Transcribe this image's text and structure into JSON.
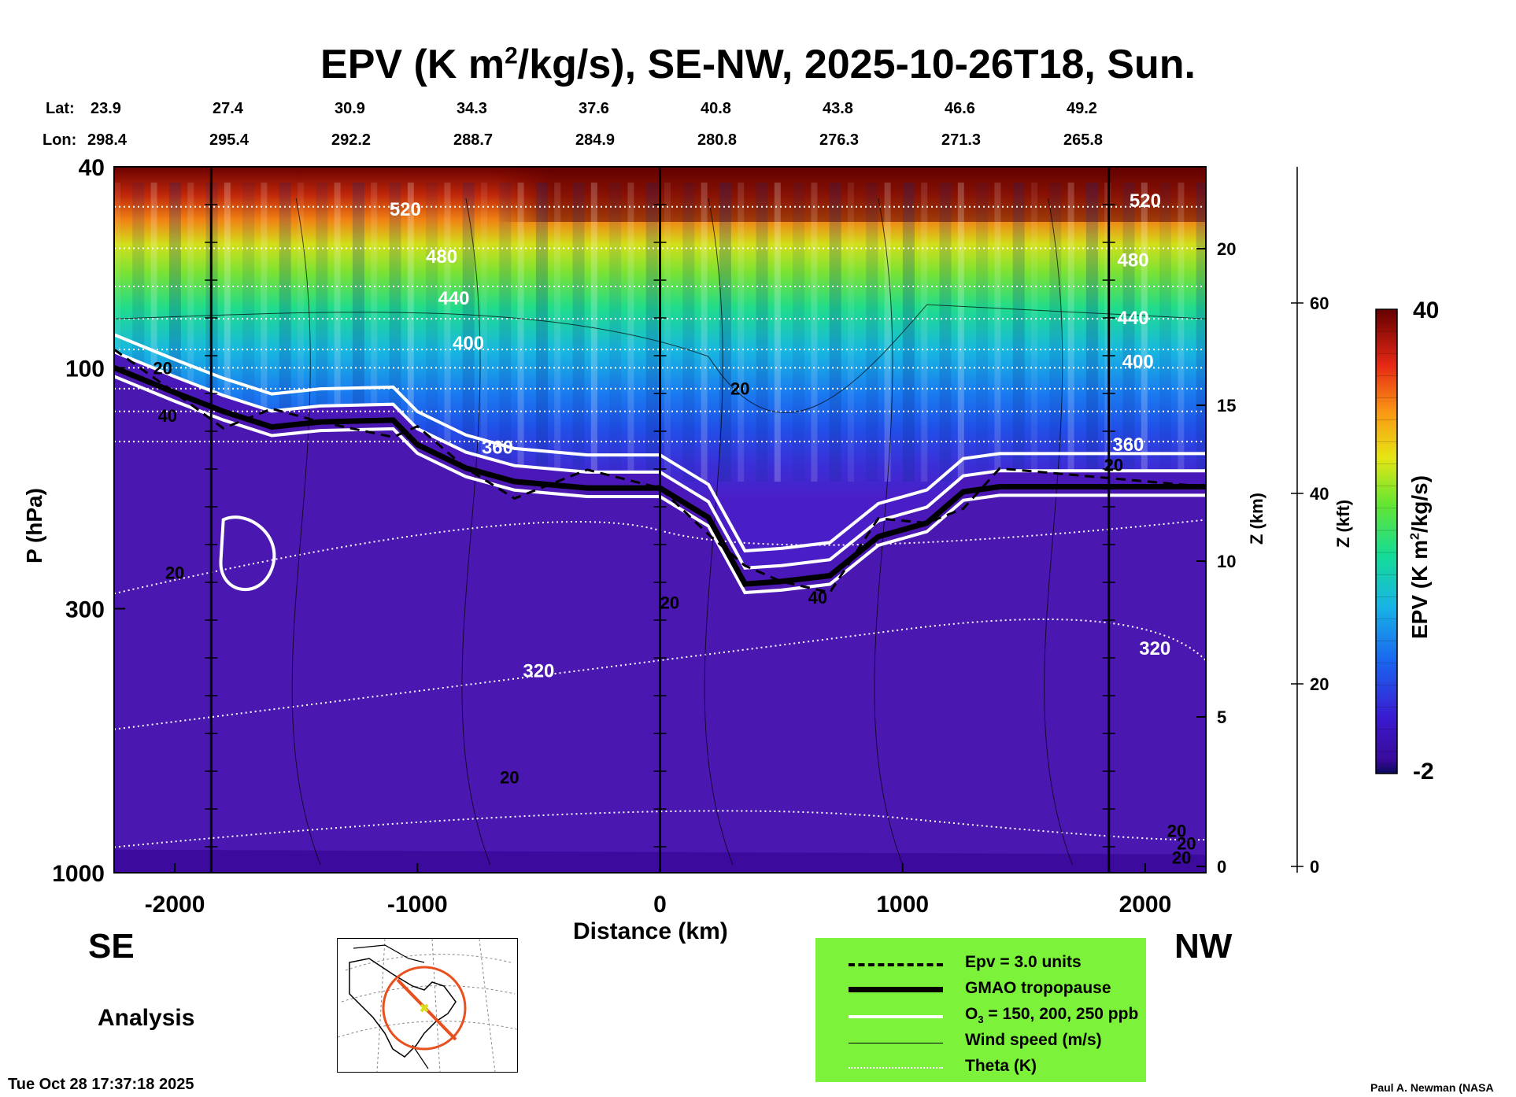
{
  "chart_data": {
    "type": "heatmap",
    "title": "EPV (K m",
    "title_sup": "2",
    "title_rest": "/kg/s), SE-NW, 2025-10-26T18, Sun.",
    "xlabel": "Distance (km)",
    "ylabel": "P (hPa)",
    "ylabel_right1": "Z (km)",
    "ylabel_right2": "Z (kft)",
    "xlim": [
      -2250,
      2250
    ],
    "ylim_hpa": [
      1000,
      40
    ],
    "x_ticks": [
      "-2000",
      "-1000",
      "0",
      "1000",
      "2000"
    ],
    "x_tick_values": [
      -2000,
      -1000,
      0,
      1000,
      2000
    ],
    "y_ticks": [
      "40",
      "100",
      "300",
      "1000"
    ],
    "y_tick_values": [
      40,
      100,
      300,
      1000
    ],
    "z_km_ticks": [
      "20",
      "15",
      "10",
      "5",
      "0"
    ],
    "z_km_values": [
      20,
      15,
      10,
      5,
      0
    ],
    "z_kft_ticks": [
      "60",
      "40",
      "20",
      "0"
    ],
    "z_kft_values": [
      60,
      40,
      20,
      0
    ],
    "lat_label": "Lat:",
    "lon_label": "Lon:",
    "lat": [
      "23.9",
      "27.4",
      "30.9",
      "34.3",
      "37.6",
      "40.8",
      "43.8",
      "46.6",
      "49.2"
    ],
    "lon": [
      "298.4",
      "295.4",
      "292.2",
      "288.7",
      "284.9",
      "280.8",
      "276.3",
      "271.3",
      "265.8"
    ],
    "vertical_markers_km": [
      -1850,
      0,
      1850
    ],
    "colorbar": {
      "label": "EPV (K m",
      "label_sup": "2",
      "label_rest": "/kg/s)",
      "min": "-2",
      "max": "40",
      "range": [
        -2,
        40
      ]
    },
    "theta_labels": [
      "520",
      "480",
      "440",
      "400",
      "360",
      "320",
      "520",
      "480",
      "440",
      "400",
      "360",
      "320"
    ],
    "wind_labels": [
      "20",
      "40",
      "20",
      "20",
      "20",
      "20",
      "40",
      "20",
      "20",
      "20",
      "20"
    ],
    "tropopause_hpa": [
      [
        -2250,
        100
      ],
      [
        -2000,
        112
      ],
      [
        -1800,
        122
      ],
      [
        -1600,
        131
      ],
      [
        -1400,
        128
      ],
      [
        -1100,
        127
      ],
      [
        -1000,
        142
      ],
      [
        -800,
        158
      ],
      [
        -600,
        168
      ],
      [
        -300,
        173
      ],
      [
        0,
        173
      ],
      [
        200,
        198
      ],
      [
        350,
        268
      ],
      [
        500,
        265
      ],
      [
        700,
        258
      ],
      [
        900,
        216
      ],
      [
        1100,
        203
      ],
      [
        1250,
        176
      ],
      [
        1400,
        172
      ],
      [
        2250,
        172
      ]
    ],
    "theta_isentropes_K": [
      520,
      480,
      440,
      400,
      360,
      320
    ]
  },
  "labels": {
    "se": "SE",
    "nw": "NW",
    "analysis": "Analysis",
    "timestamp": "Tue Oct 28 17:37:18 2025",
    "credit": "Paul A. Newman (NASA"
  },
  "legend": {
    "epv": "Epv = 3.0 units",
    "tropopause": "GMAO tropopause",
    "o3_pre": "O",
    "o3_sub": "3",
    "o3_post": " = 150, 200, 250 ppb",
    "wind": "Wind speed (m/s)",
    "theta": "Theta (K)",
    "background": "#7cf23a"
  },
  "colors": {
    "low": "#3a0aa0",
    "high": "#5a0000"
  }
}
